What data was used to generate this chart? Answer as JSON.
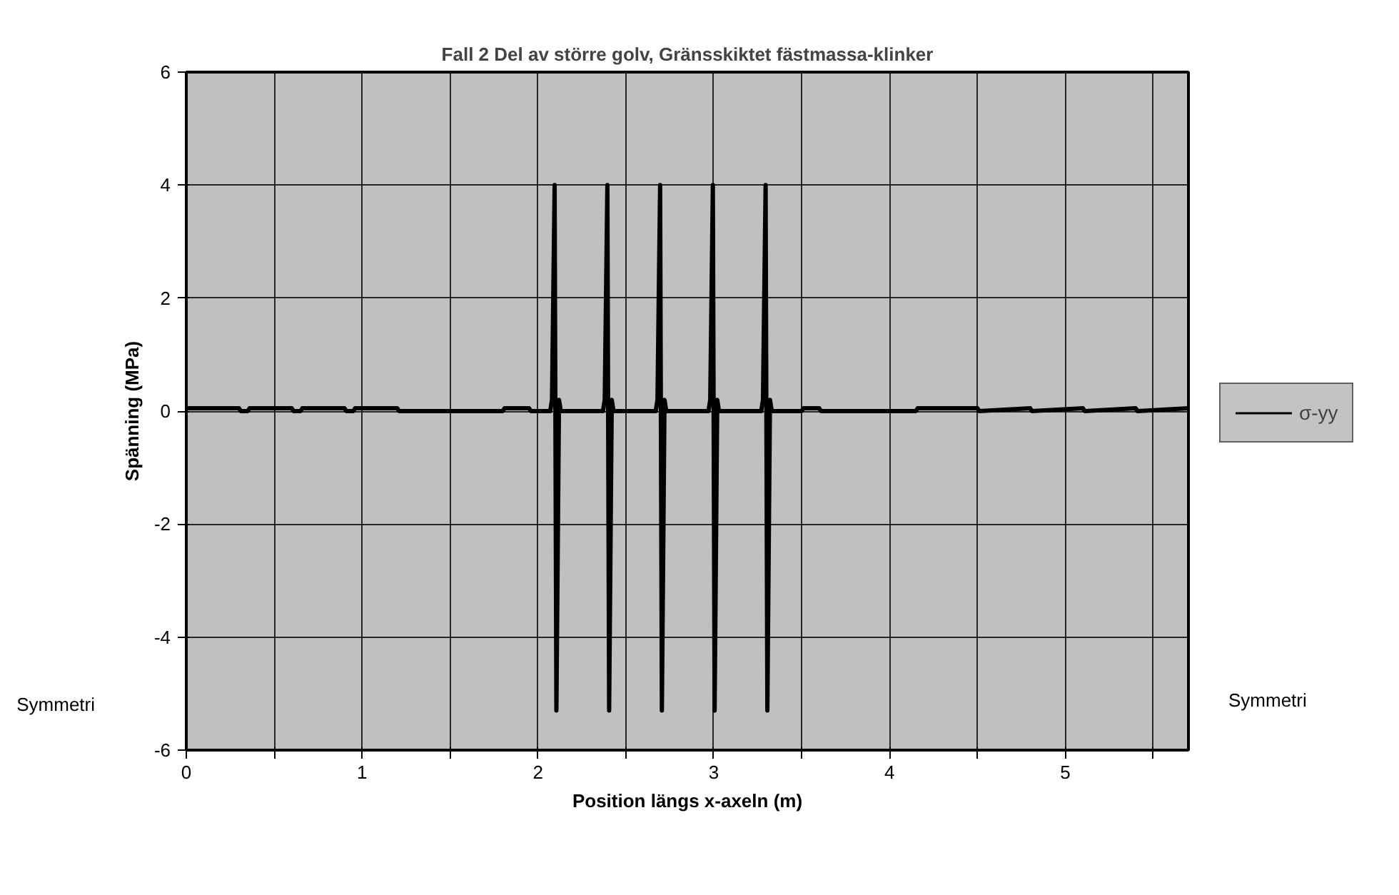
{
  "chart_data": {
    "type": "line",
    "title": "Fall 2 Del av större golv, Gränsskiktet fästmassa-klinker",
    "xlabel": "Position längs x-axeln (m)",
    "ylabel": "Spänning (MPa)",
    "annotations": [
      "Symmetri",
      "Symmetri"
    ],
    "x": [
      0,
      0.3,
      0.31,
      0.35,
      0.36,
      0.6,
      0.61,
      0.65,
      0.66,
      0.9,
      0.91,
      0.95,
      0.96,
      1.2,
      1.21,
      1.27,
      1.28,
      1.8,
      1.81,
      1.95,
      1.96,
      2.07,
      2.08,
      2.095,
      2.105,
      2.12,
      2.13,
      2.37,
      2.38,
      2.395,
      2.405,
      2.42,
      2.43,
      2.67,
      2.68,
      2.695,
      2.705,
      2.72,
      2.73,
      2.97,
      2.98,
      2.995,
      3.005,
      3.02,
      3.03,
      3.27,
      3.28,
      3.295,
      3.305,
      3.32,
      3.33,
      3.5,
      3.51,
      3.6,
      3.61,
      4.15,
      4.16,
      4.5,
      4.51,
      4.8,
      4.81,
      5.1,
      5.11,
      5.4,
      5.41,
      5.7
    ],
    "series": [
      {
        "name": "σ-yy",
        "color": "#000000",
        "values": [
          0.05,
          0.05,
          0,
          0,
          0.05,
          0.05,
          0,
          0,
          0.05,
          0.05,
          0,
          0,
          0.05,
          0.05,
          0,
          0,
          0,
          0,
          0.05,
          0.05,
          0,
          0,
          0.2,
          4.0,
          -5.3,
          0.2,
          0,
          0,
          0.2,
          4.0,
          -5.3,
          0.2,
          0,
          0,
          0.2,
          4.0,
          -5.3,
          0.2,
          0,
          0,
          0.2,
          4.0,
          -5.3,
          0.2,
          0,
          0,
          0.2,
          4.0,
          -5.3,
          0.2,
          0,
          0,
          0.05,
          0.05,
          0,
          0,
          0.05,
          0.05,
          0,
          0.05,
          0,
          0.05,
          0,
          0.05,
          0,
          0.05
        ]
      }
    ],
    "xlim": [
      0,
      5.7
    ],
    "ylim": [
      -6,
      6
    ],
    "xticks": [
      0,
      {
        "value": 0.5,
        "label": null
      },
      1,
      {
        "value": 1.5,
        "label": null
      },
      2,
      {
        "value": 2.5,
        "label": null
      },
      3,
      {
        "value": 3.5,
        "label": null
      },
      4,
      {
        "value": 4.5,
        "label": null
      },
      5,
      {
        "value": 5.5,
        "label": null
      }
    ],
    "yticks": [
      -6,
      -4,
      -2,
      0,
      2,
      4,
      6
    ],
    "grid": true,
    "legend": "right",
    "marker": "none",
    "line_style": "solid"
  }
}
